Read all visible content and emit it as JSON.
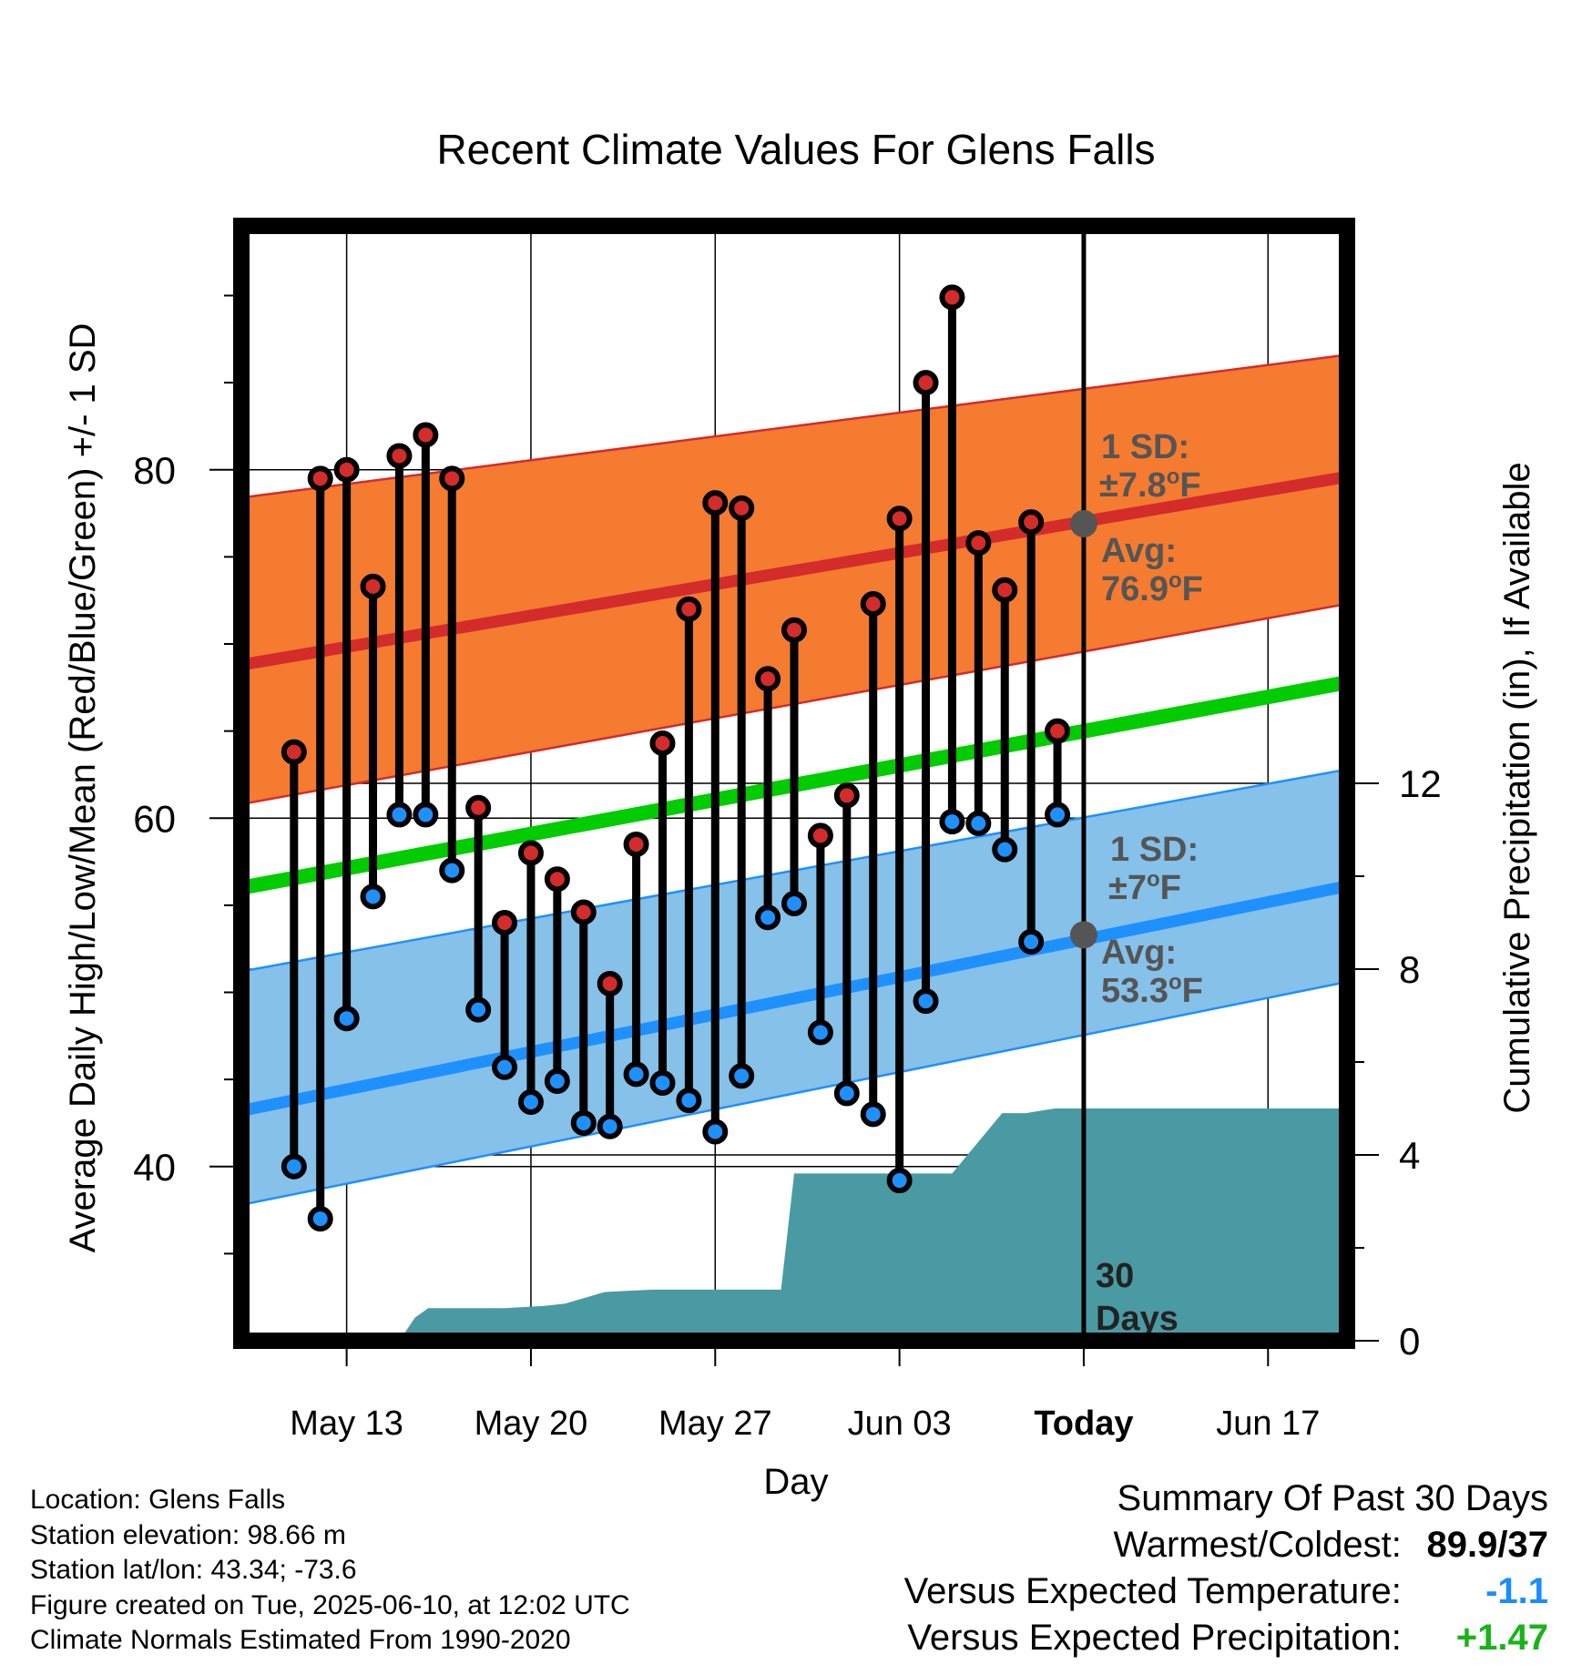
{
  "chart_data": {
    "type": "line",
    "title": "Recent Climate Values For Glens Falls",
    "xlabel": "Day",
    "ylabel": "Average Daily High/Low/Mean (Red/Blue/Green) +/- 1 SD",
    "y2label": "Cumulative Precipitation (in), If Available",
    "xlim_days": [
      -32,
      10
    ],
    "ylim": [
      30,
      94
    ],
    "y2lim": [
      0,
      24
    ],
    "x_ticks": [
      {
        "day": -28,
        "label": "May 13"
      },
      {
        "day": -21,
        "label": "May 20"
      },
      {
        "day": -14,
        "label": "May 27"
      },
      {
        "day": -7,
        "label": "Jun 03"
      },
      {
        "day": 0,
        "label": "Today"
      },
      {
        "day": 7,
        "label": "Jun 17"
      }
    ],
    "y_ticks": [
      40,
      60,
      80
    ],
    "y2_ticks": [
      0,
      4,
      8,
      12
    ],
    "grid": true,
    "colors": {
      "high_band": "#f47b30",
      "high_line": "#d42b2b",
      "low_band": "#85c1e9",
      "low_line": "#1e90ff",
      "mean_line": "#00cc00",
      "precip": "#4a9aa3",
      "high_marker": "#d42b2b",
      "low_marker": "#1e90ff",
      "annotation": "#555555"
    },
    "normal_high": {
      "start": 68.8,
      "end": 79.6,
      "sd_upper_start": 78.4,
      "sd_upper_end": 86.6,
      "sd_lower_start": 60.8,
      "sd_lower_end": 72.3
    },
    "normal_low": {
      "start": 43.2,
      "end": 56.1,
      "sd_upper_start": 51.2,
      "sd_upper_end": 62.8,
      "sd_lower_start": 37.8,
      "sd_lower_end": 50.6
    },
    "normal_mean": {
      "start": 56.0,
      "end": 67.8
    },
    "days": [
      -30,
      -29,
      -28,
      -27,
      -26,
      -25,
      -24,
      -23,
      -22,
      -21,
      -20,
      -19,
      -18,
      -17,
      -16,
      -15,
      -14,
      -13,
      -12,
      -11,
      -10,
      -9,
      -8,
      -7,
      -6,
      -5,
      -4,
      -3,
      -2,
      -1
    ],
    "highs": [
      63.8,
      79.5,
      80.0,
      73.3,
      80.8,
      82.0,
      79.5,
      60.6,
      54.0,
      58.0,
      56.5,
      54.6,
      50.5,
      58.5,
      64.3,
      72.0,
      78.1,
      77.8,
      68.0,
      70.8,
      59.0,
      61.3,
      72.3,
      77.2,
      85.0,
      89.9,
      75.8,
      73.1,
      77.0,
      65.0
    ],
    "lows": [
      40.0,
      37.0,
      48.5,
      55.5,
      60.2,
      60.2,
      57.0,
      49.0,
      45.7,
      43.7,
      44.9,
      42.5,
      42.3,
      45.3,
      44.8,
      43.8,
      42.0,
      45.2,
      54.3,
      55.1,
      47.7,
      44.2,
      43.0,
      39.2,
      49.5,
      59.8,
      59.7,
      58.2,
      52.9,
      60.2
    ],
    "precip_cumulative": [
      {
        "day": -32,
        "value": 0
      },
      {
        "day": -26,
        "value": 0
      },
      {
        "day": -25.4,
        "value": 0.5
      },
      {
        "day": -24.9,
        "value": 0.7
      },
      {
        "day": -22,
        "value": 0.7
      },
      {
        "day": -20.5,
        "value": 0.75
      },
      {
        "day": -19.7,
        "value": 0.8
      },
      {
        "day": -18.2,
        "value": 1.05
      },
      {
        "day": -16.4,
        "value": 1.1
      },
      {
        "day": -11.5,
        "value": 1.1
      },
      {
        "day": -11,
        "value": 3.6
      },
      {
        "day": -5,
        "value": 3.6
      },
      {
        "day": -3.1,
        "value": 4.9
      },
      {
        "day": -2.2,
        "value": 4.9
      },
      {
        "day": -1.1,
        "value": 5.0
      },
      {
        "day": 10,
        "value": 5.0
      }
    ],
    "today_marker": {
      "day": 0,
      "avg_high": 76.9,
      "avg_low": 53.3
    },
    "annotations": {
      "high_sd_label": "1 SD:",
      "high_sd_value": "±7.8",
      "high_avg_label": "Avg:",
      "high_avg_value": "76.9",
      "low_sd_label": "1 SD:",
      "low_sd_value": "±7",
      "low_avg_label": "Avg:",
      "low_avg_value": "53.3",
      "degree_mark": "o",
      "unit": "F",
      "window_number": "30",
      "window_word": "Days"
    }
  },
  "footer": {
    "location": "Location: Glens Falls",
    "elevation": "Station elevation: 98.66 m",
    "latlon": "Station lat/lon: 43.34; -73.6",
    "created": "Figure created on Tue, 2025-06-10, at 12:02 UTC",
    "normals": "Climate Normals Estimated From 1990-2020"
  },
  "summary": {
    "heading": "Summary Of Past 30 Days",
    "warm_cold_label": "Warmest/Coldest:",
    "warm_cold_value": "89.9/37",
    "temp_label": "Versus Expected Temperature:",
    "temp_value": "-1.1",
    "precip_label": "Versus Expected Precipitation:",
    "precip_value": "+1.47"
  }
}
